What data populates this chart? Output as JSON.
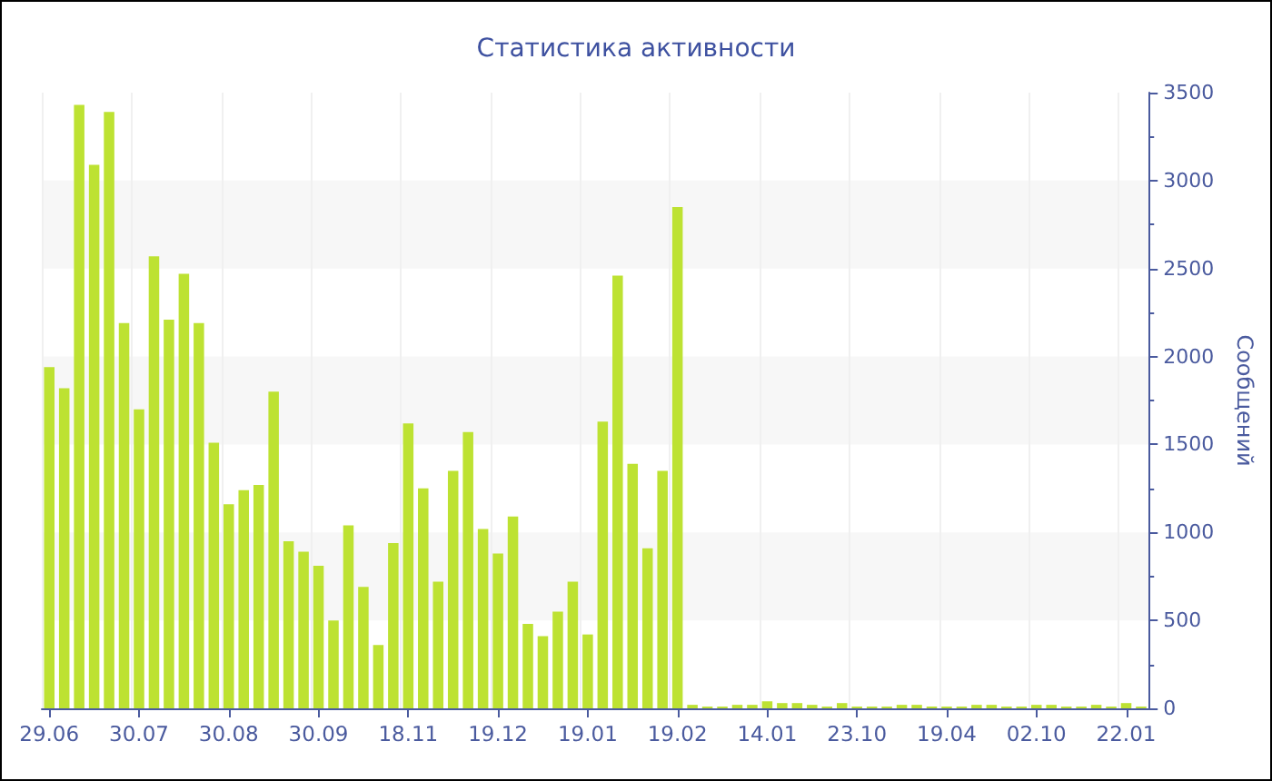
{
  "chart_data": {
    "type": "bar",
    "title": "Статистика активности",
    "ylabel": "Сообщений",
    "categories": [
      "29.06",
      null,
      null,
      null,
      null,
      null,
      "30.07",
      null,
      null,
      null,
      null,
      null,
      "30.08",
      null,
      null,
      null,
      null,
      null,
      "30.09",
      null,
      null,
      null,
      null,
      null,
      "18.11",
      null,
      null,
      null,
      null,
      null,
      "19.12",
      null,
      null,
      null,
      null,
      null,
      "19.01",
      null,
      null,
      null,
      null,
      null,
      "19.02",
      null,
      null,
      null,
      null,
      null,
      "14.01",
      null,
      null,
      null,
      null,
      null,
      "23.10",
      null,
      null,
      null,
      null,
      null,
      "19.04",
      null,
      null,
      null,
      null,
      null,
      "02.10",
      null,
      null,
      null,
      null,
      null,
      "22.01",
      null
    ],
    "values": [
      1940,
      1820,
      3430,
      3090,
      3390,
      2190,
      1700,
      2570,
      2210,
      2470,
      2190,
      1510,
      1160,
      1240,
      1270,
      1800,
      950,
      890,
      810,
      500,
      1040,
      690,
      360,
      940,
      1620,
      1250,
      720,
      1350,
      1570,
      1020,
      880,
      1090,
      480,
      410,
      550,
      720,
      420,
      1630,
      2460,
      1390,
      910,
      1350,
      2850,
      20,
      10,
      10,
      20,
      20,
      40,
      30,
      30,
      20,
      10,
      30,
      10,
      10,
      10,
      20,
      20,
      10,
      10,
      10,
      20,
      20,
      10,
      10,
      20,
      20,
      10,
      10,
      20,
      10,
      30,
      10
    ],
    "color": "#bde232",
    "ylim": [
      0,
      3500
    ],
    "yticks": [
      0,
      500,
      1000,
      1500,
      2000,
      2500,
      3000,
      3500
    ],
    "grid": true
  }
}
